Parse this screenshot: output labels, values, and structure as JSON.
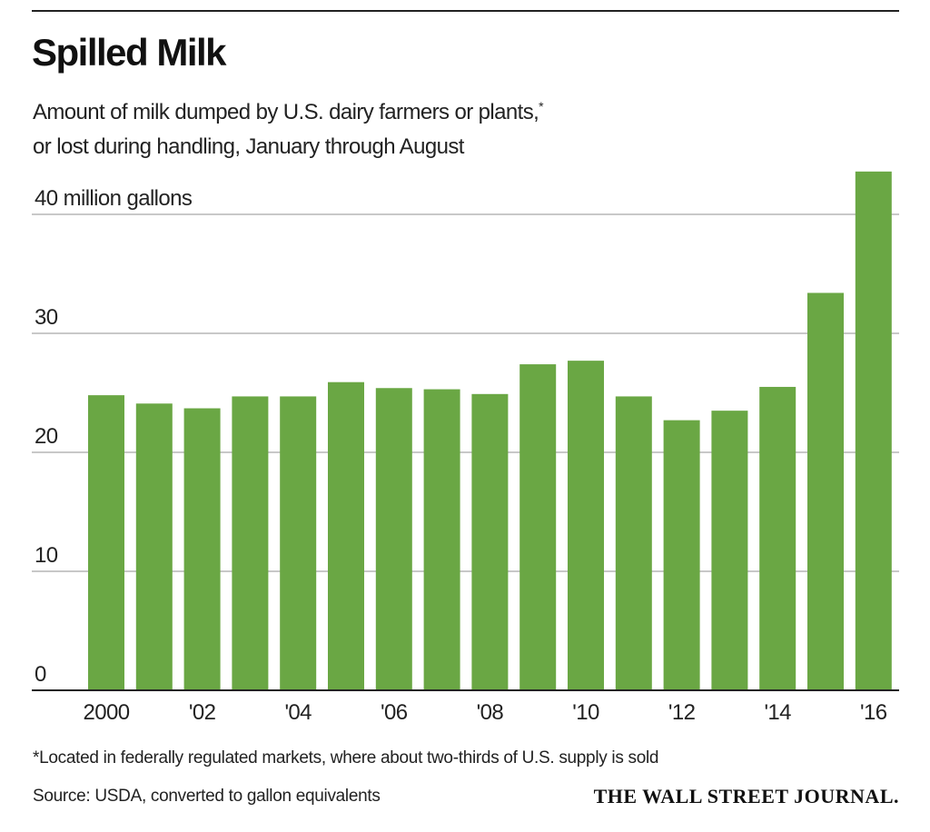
{
  "chart_data": {
    "type": "bar",
    "title": "Spilled Milk",
    "subtitle_line1": "Amount of milk dumped by U.S. dairy farmers or plants,",
    "subtitle_marker": "*",
    "subtitle_line2": "or lost during handling, January through August",
    "ylabel": "40 million gallons",
    "ylim": [
      0,
      44
    ],
    "yticks": [
      0,
      10,
      20,
      30,
      40
    ],
    "ytick_labels": [
      "0",
      "10",
      "20",
      "30",
      "40 million gallons"
    ],
    "categories": [
      "2000",
      "2001",
      "2002",
      "2003",
      "2004",
      "2005",
      "2006",
      "2007",
      "2008",
      "2009",
      "2010",
      "2011",
      "2012",
      "2013",
      "2014",
      "2015",
      "2016"
    ],
    "xtick_labels": {
      "2000": "2000",
      "2002": "'02",
      "2004": "'04",
      "2006": "'06",
      "2008": "'08",
      "2010": "'10",
      "2012": "'12",
      "2014": "'14",
      "2016": "'16"
    },
    "values": [
      24.8,
      24.1,
      23.7,
      24.7,
      24.7,
      25.9,
      25.4,
      25.3,
      24.9,
      27.4,
      27.7,
      24.7,
      22.7,
      23.5,
      25.5,
      33.4,
      43.6
    ],
    "grid": true,
    "bar_color": "#6aa744",
    "footnote": "*Located in federally regulated markets, where about two-thirds of U.S. supply is sold",
    "source": "Source: USDA, converted to gallon equivalents",
    "credit": "THE WALL STREET JOURNAL."
  }
}
